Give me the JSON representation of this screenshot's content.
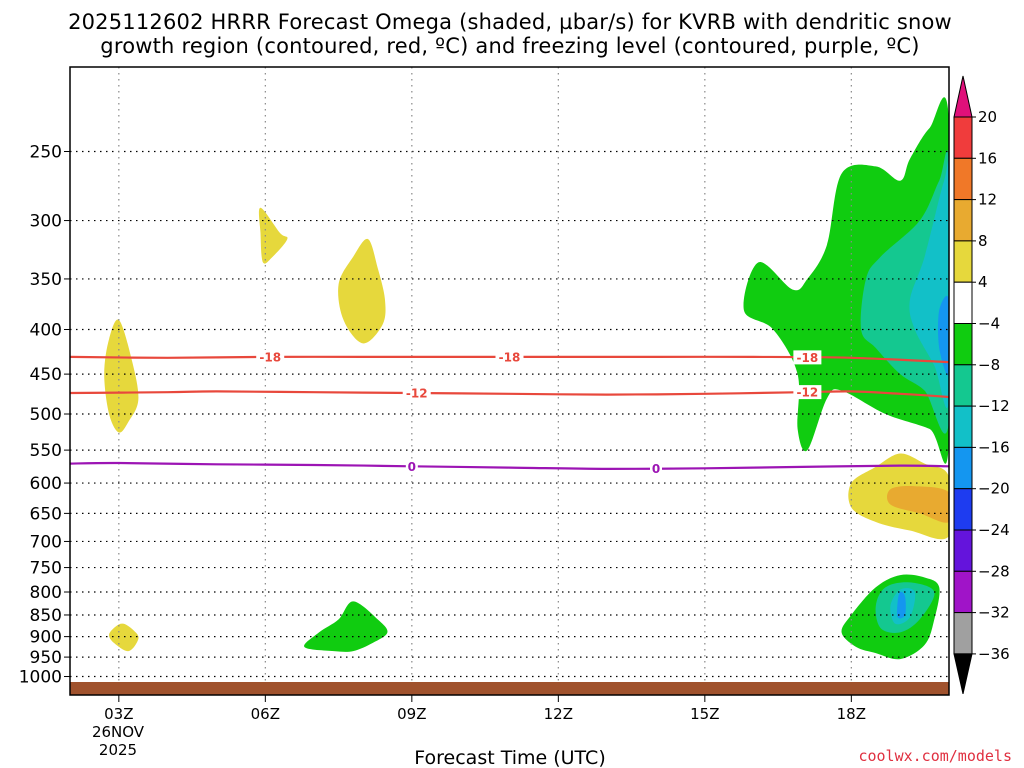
{
  "chart_data": {
    "type": "contour",
    "title_line1": "2025112602 HRRR Forecast Omega (shaded, µbar/s) for KVRB with dendritic snow",
    "title_line2": "growth region (contoured, red, ºC) and freezing level (contoured, purple, ºC)",
    "xlabel": "Forecast Time (UTC)",
    "credit": "coolwx.com/models",
    "x_ticks": [
      {
        "hour": 3,
        "label": "03Z"
      },
      {
        "hour": 6,
        "label": "06Z"
      },
      {
        "hour": 9,
        "label": "09Z"
      },
      {
        "hour": 12,
        "label": "12Z"
      },
      {
        "hour": 15,
        "label": "15Z"
      },
      {
        "hour": 18,
        "label": "18Z"
      }
    ],
    "x_date_line1": "26NOV",
    "x_date_line2": "2025",
    "xlim": [
      2,
      20
    ],
    "y_axis": "pressure (hPa), inverted, log scale",
    "ylim": [
      1050,
      200
    ],
    "y_ticks": [
      250,
      300,
      350,
      400,
      450,
      500,
      550,
      600,
      650,
      700,
      750,
      800,
      850,
      900,
      950,
      1000
    ],
    "colorbar": {
      "tick_values": [
        "20",
        "16",
        "12",
        "8",
        "4",
        "−4",
        "−8",
        "−12",
        "−16",
        "−20",
        "−24",
        "−28",
        "−32",
        "−36"
      ],
      "bins": [
        {
          "range": ">20",
          "color": "#e0107a"
        },
        {
          "range": "16 to 20",
          "color": "#f03c3c"
        },
        {
          "range": "12 to 16",
          "color": "#f07828"
        },
        {
          "range": "8 to 12",
          "color": "#e8aa30"
        },
        {
          "range": "4 to 8",
          "color": "#e6d83c"
        },
        {
          "range": "-4 to 4",
          "color": "#ffffff"
        },
        {
          "range": "-8 to -4",
          "color": "#10cc10"
        },
        {
          "range": "-12 to -8",
          "color": "#14c890"
        },
        {
          "range": "-16 to -12",
          "color": "#12c0c8"
        },
        {
          "range": "-20 to -16",
          "color": "#1496f0"
        },
        {
          "range": "-24 to -20",
          "color": "#1e3cf0"
        },
        {
          "range": "-28 to -24",
          "color": "#6414dc"
        },
        {
          "range": "-32 to -28",
          "color": "#a014c8"
        },
        {
          "range": "-36 to -32",
          "color": "#a0a0a0"
        },
        {
          "range": "<-36",
          "color": "#000000"
        }
      ]
    },
    "contours": [
      {
        "label": "-18",
        "color": "#e8483c",
        "points": [
          [
            2,
            430
          ],
          [
            4,
            431
          ],
          [
            6,
            430
          ],
          [
            8,
            430
          ],
          [
            10,
            430
          ],
          [
            12,
            430
          ],
          [
            14,
            430
          ],
          [
            16,
            430
          ],
          [
            18,
            431
          ],
          [
            20,
            436
          ]
        ],
        "label_hours": [
          6.1,
          11.0,
          17.1
        ]
      },
      {
        "label": "-12",
        "color": "#e8483c",
        "points": [
          [
            2,
            473
          ],
          [
            4,
            472
          ],
          [
            5,
            471
          ],
          [
            7,
            472
          ],
          [
            9,
            473
          ],
          [
            11,
            474
          ],
          [
            13,
            475
          ],
          [
            15,
            474
          ],
          [
            17,
            472
          ],
          [
            18,
            471
          ],
          [
            19,
            474
          ],
          [
            20,
            478
          ]
        ],
        "label_hours": [
          9.1,
          17.1
        ]
      },
      {
        "label": "0",
        "color": "#9c14b4",
        "points": [
          [
            2,
            570
          ],
          [
            3,
            569
          ],
          [
            5,
            571
          ],
          [
            7,
            572
          ],
          [
            9,
            574
          ],
          [
            11,
            576
          ],
          [
            13,
            578
          ],
          [
            15,
            577
          ],
          [
            17,
            575
          ],
          [
            19,
            573
          ],
          [
            20,
            574
          ]
        ],
        "label_hours": [
          9.0,
          14.0
        ]
      }
    ],
    "shaded_regions": [
      {
        "color": "#e6d83c",
        "points": [
          [
            3.0,
            390
          ],
          [
            3.25,
            430
          ],
          [
            3.4,
            480
          ],
          [
            3.2,
            510
          ],
          [
            3.0,
            525
          ],
          [
            2.8,
            500
          ],
          [
            2.7,
            450
          ],
          [
            2.8,
            410
          ]
        ]
      },
      {
        "color": "#e6d83c",
        "points": [
          [
            3.1,
            870
          ],
          [
            3.3,
            885
          ],
          [
            3.4,
            905
          ],
          [
            3.2,
            935
          ],
          [
            2.9,
            915
          ],
          [
            2.8,
            895
          ],
          [
            2.95,
            875
          ]
        ]
      },
      {
        "color": "#e6d83c",
        "points": [
          [
            5.9,
            290
          ],
          [
            6.3,
            310
          ],
          [
            6.45,
            315
          ],
          [
            6.15,
            330
          ],
          [
            5.95,
            335
          ],
          [
            5.9,
            310
          ]
        ]
      },
      {
        "color": "#e6d83c",
        "points": [
          [
            8.1,
            315
          ],
          [
            8.3,
            340
          ],
          [
            8.45,
            370
          ],
          [
            8.4,
            395
          ],
          [
            8.0,
            415
          ],
          [
            7.6,
            390
          ],
          [
            7.5,
            355
          ],
          [
            7.8,
            330
          ]
        ]
      },
      {
        "color": "#10cc10",
        "points": [
          [
            7.8,
            820
          ],
          [
            8.3,
            860
          ],
          [
            8.5,
            890
          ],
          [
            8.2,
            915
          ],
          [
            7.8,
            935
          ],
          [
            7.4,
            935
          ],
          [
            6.8,
            925
          ],
          [
            7.1,
            890
          ],
          [
            7.5,
            860
          ]
        ]
      },
      {
        "color": "#e6d83c",
        "points": [
          [
            18.0,
            600
          ],
          [
            18.5,
            575
          ],
          [
            19.0,
            555
          ],
          [
            19.5,
            570
          ],
          [
            20.0,
            590
          ],
          [
            20.0,
            690
          ],
          [
            19.2,
            680
          ],
          [
            18.5,
            665
          ],
          [
            18.0,
            640
          ]
        ]
      },
      {
        "color": "#e8aa30",
        "points": [
          [
            18.8,
            610
          ],
          [
            19.3,
            605
          ],
          [
            20.0,
            615
          ],
          [
            20.0,
            665
          ],
          [
            19.4,
            650
          ],
          [
            18.8,
            635
          ]
        ]
      },
      {
        "color": "#10cc10",
        "points": [
          [
            16.8,
            360
          ],
          [
            17.1,
            350
          ],
          [
            17.5,
            320
          ],
          [
            17.8,
            265
          ],
          [
            18.5,
            260
          ],
          [
            19.0,
            270
          ],
          [
            19.2,
            255
          ],
          [
            19.6,
            235
          ],
          [
            20.0,
            230
          ],
          [
            20.0,
            540
          ],
          [
            19.6,
            520
          ],
          [
            18.7,
            500
          ],
          [
            17.8,
            470
          ],
          [
            17.5,
            480
          ],
          [
            17.1,
            550
          ],
          [
            16.9,
            520
          ],
          [
            16.9,
            450
          ],
          [
            16.4,
            400
          ],
          [
            15.8,
            380
          ],
          [
            16.1,
            335
          ]
        ]
      },
      {
        "color": "#14c890",
        "points": [
          [
            19.4,
            300
          ],
          [
            19.8,
            270
          ],
          [
            20.0,
            260
          ],
          [
            20.0,
            510
          ],
          [
            19.5,
            470
          ],
          [
            19.0,
            450
          ],
          [
            18.5,
            420
          ],
          [
            18.2,
            400
          ],
          [
            18.3,
            350
          ],
          [
            18.6,
            330
          ]
        ]
      },
      {
        "color": "#12c0c8",
        "points": [
          [
            19.9,
            270
          ],
          [
            20.0,
            270
          ],
          [
            20.0,
            480
          ],
          [
            19.7,
            440
          ],
          [
            19.3,
            400
          ],
          [
            19.2,
            370
          ],
          [
            19.5,
            330
          ]
        ]
      },
      {
        "color": "#1496f0",
        "points": [
          [
            19.8,
            380
          ],
          [
            20.0,
            370
          ],
          [
            20.0,
            450
          ],
          [
            19.8,
            420
          ]
        ]
      },
      {
        "color": "#10cc10",
        "points": [
          [
            18.5,
            790
          ],
          [
            19.0,
            765
          ],
          [
            19.5,
            770
          ],
          [
            19.8,
            790
          ],
          [
            19.7,
            860
          ],
          [
            19.5,
            920
          ],
          [
            19.0,
            955
          ],
          [
            18.5,
            940
          ],
          [
            18.1,
            925
          ],
          [
            17.8,
            890
          ],
          [
            18.0,
            850
          ]
        ]
      },
      {
        "color": "#14c890",
        "points": [
          [
            18.7,
            790
          ],
          [
            19.2,
            780
          ],
          [
            19.7,
            800
          ],
          [
            19.4,
            860
          ],
          [
            19.0,
            890
          ],
          [
            18.6,
            880
          ],
          [
            18.5,
            830
          ]
        ]
      },
      {
        "color": "#12c0c8",
        "points": [
          [
            19.0,
            795
          ],
          [
            19.3,
            800
          ],
          [
            19.2,
            855
          ],
          [
            18.9,
            870
          ],
          [
            18.8,
            830
          ]
        ]
      },
      {
        "color": "#1496f0",
        "points": [
          [
            19.0,
            800
          ],
          [
            19.1,
            810
          ],
          [
            19.1,
            850
          ],
          [
            18.95,
            855
          ],
          [
            18.95,
            820
          ]
        ]
      }
    ],
    "terrain_color": "#a0522d",
    "grid": "dotted"
  }
}
